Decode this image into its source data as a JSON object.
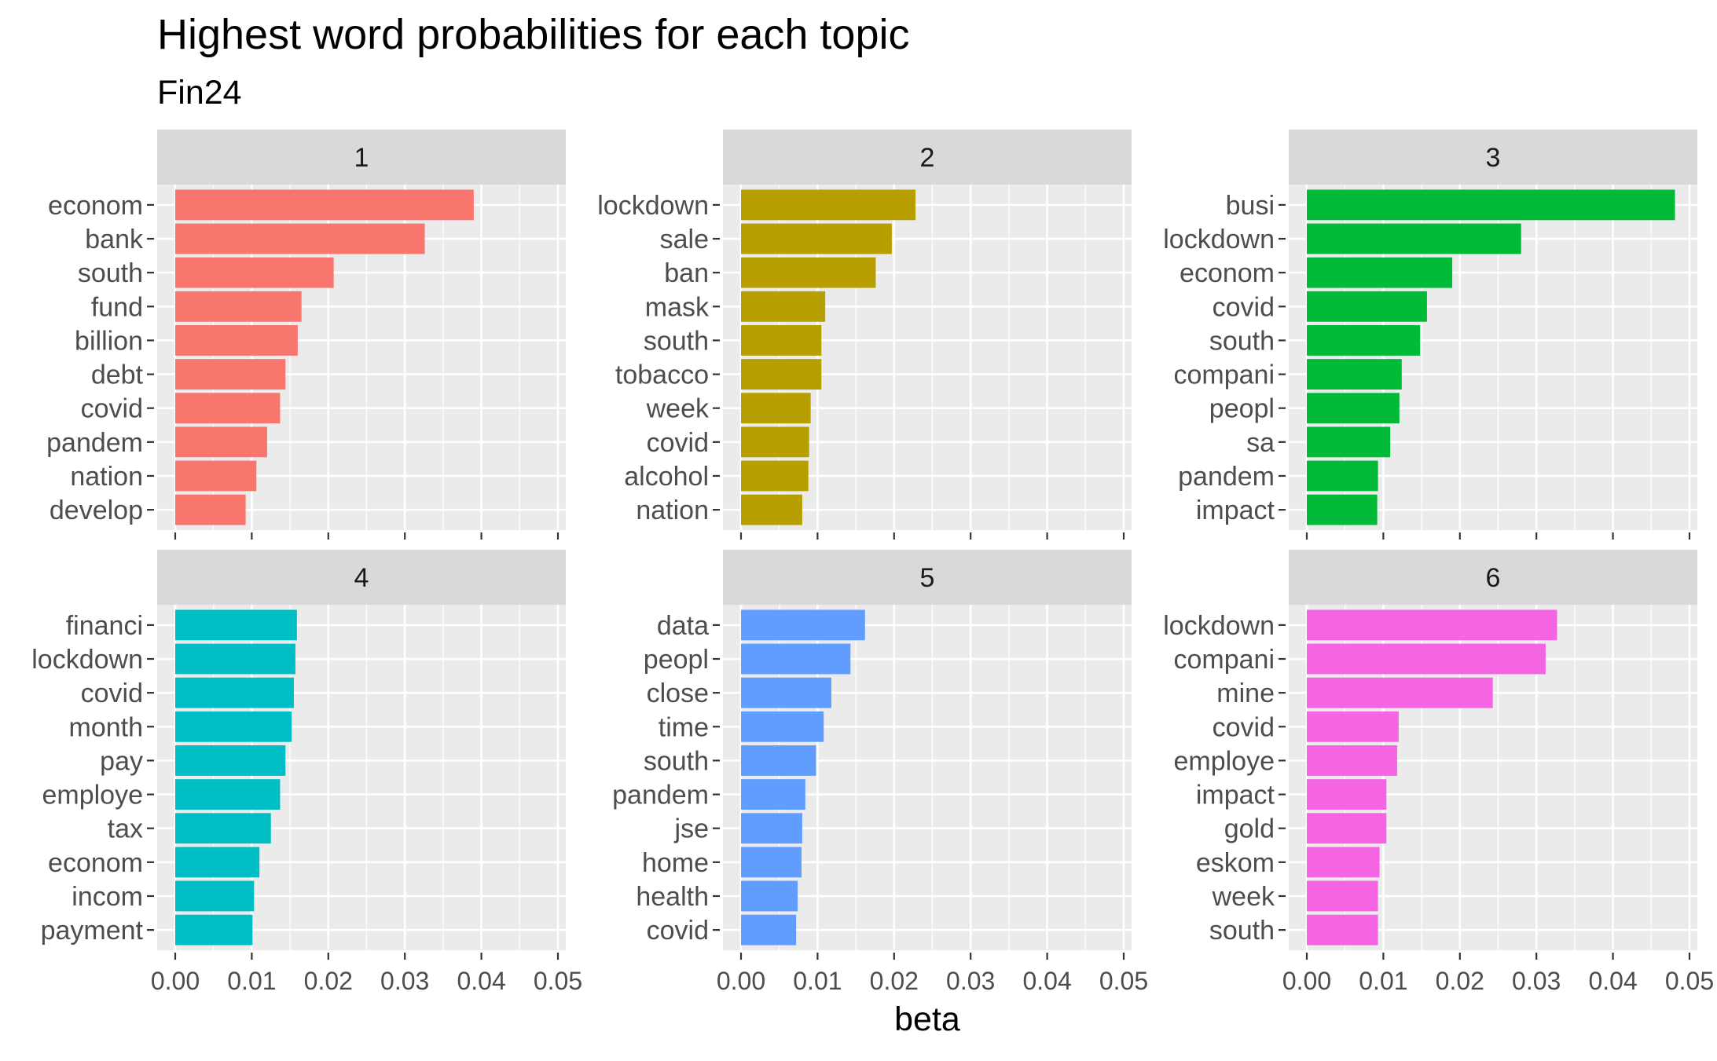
{
  "chart_data": {
    "type": "bar",
    "orientation": "horizontal",
    "title": "Highest word probabilities for each topic",
    "subtitle": "Fin24",
    "xlabel": "beta",
    "xlim": [
      0,
      0.05
    ],
    "xticks": [
      "0.00",
      "0.01",
      "0.02",
      "0.03",
      "0.04",
      "0.05"
    ],
    "grid": true,
    "facets": [
      {
        "label": "1",
        "color": "#F8766D",
        "terms": [
          "econom",
          "bank",
          "south",
          "fund",
          "billion",
          "debt",
          "covid",
          "pandem",
          "nation",
          "develop"
        ],
        "values": [
          0.039,
          0.0326,
          0.0207,
          0.0165,
          0.016,
          0.0144,
          0.0137,
          0.012,
          0.0106,
          0.0092
        ]
      },
      {
        "label": "2",
        "color": "#B79F00",
        "terms": [
          "lockdown",
          "sale",
          "ban",
          "mask",
          "south",
          "tobacco",
          "week",
          "covid",
          "alcohol",
          "nation"
        ],
        "values": [
          0.0228,
          0.0197,
          0.0176,
          0.011,
          0.0105,
          0.0105,
          0.0091,
          0.0089,
          0.0088,
          0.008
        ]
      },
      {
        "label": "3",
        "color": "#00BA38",
        "terms": [
          "busi",
          "lockdown",
          "econom",
          "covid",
          "south",
          "compani",
          "peopl",
          "sa",
          "pandem",
          "impact"
        ],
        "values": [
          0.0481,
          0.028,
          0.019,
          0.0157,
          0.0148,
          0.0124,
          0.0121,
          0.0109,
          0.0093,
          0.0092
        ]
      },
      {
        "label": "4",
        "color": "#00BFC4",
        "terms": [
          "financi",
          "lockdown",
          "covid",
          "month",
          "pay",
          "employe",
          "tax",
          "econom",
          "incom",
          "payment"
        ],
        "values": [
          0.0159,
          0.0157,
          0.0155,
          0.0152,
          0.0144,
          0.0137,
          0.0125,
          0.011,
          0.0103,
          0.0101
        ]
      },
      {
        "label": "5",
        "color": "#619CFF",
        "terms": [
          "data",
          "peopl",
          "close",
          "time",
          "south",
          "pandem",
          "jse",
          "home",
          "health",
          "covid"
        ],
        "values": [
          0.0162,
          0.0143,
          0.0118,
          0.0108,
          0.0098,
          0.0084,
          0.008,
          0.0079,
          0.0074,
          0.0072
        ]
      },
      {
        "label": "6",
        "color": "#F564E3",
        "terms": [
          "lockdown",
          "compani",
          "mine",
          "covid",
          "employe",
          "impact",
          "gold",
          "eskom",
          "week",
          "south"
        ],
        "values": [
          0.0327,
          0.0312,
          0.0243,
          0.012,
          0.0118,
          0.0104,
          0.0104,
          0.0095,
          0.0093,
          0.0093
        ]
      }
    ]
  }
}
